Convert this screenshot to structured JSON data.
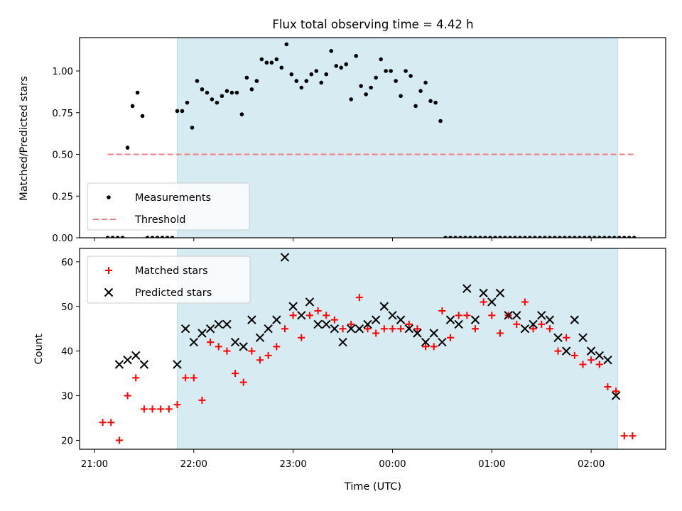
{
  "chart_data": [
    {
      "type": "scatter",
      "title": "Flux total observing time = 4.42 h",
      "ylabel": "Matched/Predicted stars",
      "xlim": [
        "20:51",
        "02:45"
      ],
      "ylim": [
        0,
        1.2
      ],
      "y_ticks": [
        0.0,
        0.25,
        0.5,
        0.75,
        1.0
      ],
      "y_tick_labels": [
        "0.00",
        "0.25",
        "0.50",
        "0.75",
        "1.00"
      ],
      "observing_window": [
        "21:50",
        "02:16"
      ],
      "legend": {
        "placement": "lower-left",
        "entries": [
          "Measurements",
          "Threshold"
        ]
      },
      "threshold": {
        "name": "Threshold",
        "y": 0.5,
        "x_range": [
          "21:08",
          "02:26"
        ],
        "color": "#f08080"
      },
      "series": [
        {
          "name": "Measurements",
          "marker": "dot",
          "color": "#000000",
          "x": [
            "21:08",
            "21:11",
            "21:14",
            "21:17",
            "21:20",
            "21:23",
            "21:26",
            "21:29",
            "21:32",
            "21:35",
            "21:38",
            "21:41",
            "21:44",
            "21:47",
            "21:50",
            "21:53",
            "21:56",
            "21:59",
            "22:02",
            "22:05",
            "22:08",
            "22:11",
            "22:14",
            "22:17",
            "22:20",
            "22:23",
            "22:26",
            "22:29",
            "22:32",
            "22:35",
            "22:38",
            "22:41",
            "22:44",
            "22:47",
            "22:50",
            "22:53",
            "22:56",
            "22:59",
            "23:02",
            "23:05",
            "23:08",
            "23:11",
            "23:14",
            "23:17",
            "23:20",
            "23:23",
            "23:26",
            "23:29",
            "23:32",
            "23:35",
            "23:38",
            "23:41",
            "23:44",
            "23:47",
            "23:50",
            "23:53",
            "23:56",
            "23:59",
            "00:02",
            "00:05",
            "00:08",
            "00:11",
            "00:14",
            "00:17",
            "00:20",
            "00:23",
            "00:26",
            "00:29",
            "00:32",
            "00:35",
            "00:38",
            "00:41",
            "00:44",
            "00:47",
            "00:50",
            "00:53",
            "00:56",
            "00:59",
            "01:02",
            "01:05",
            "01:08",
            "01:11",
            "01:14",
            "01:17",
            "01:20",
            "01:23",
            "01:26",
            "01:29",
            "01:32",
            "01:35",
            "01:38",
            "01:41",
            "01:44",
            "01:47",
            "01:50",
            "01:53",
            "01:56",
            "01:59",
            "02:02",
            "02:05",
            "02:08",
            "02:11",
            "02:14",
            "02:17",
            "02:20",
            "02:23",
            "02:26"
          ],
          "y": [
            0,
            0,
            0,
            0,
            0.54,
            0.79,
            0.87,
            0.73,
            0,
            0,
            0,
            0,
            0,
            0,
            0.76,
            0.76,
            0.81,
            0.66,
            0.94,
            0.89,
            0.87,
            0.83,
            0.81,
            0.85,
            0.88,
            0.87,
            0.87,
            0.74,
            0.96,
            0.89,
            0.94,
            1.07,
            1.05,
            1.05,
            1.07,
            1.02,
            1.16,
            0.98,
            0.94,
            0.9,
            0.94,
            0.98,
            1.0,
            0.93,
            0.98,
            1.12,
            1.03,
            1.02,
            1.04,
            0.83,
            1.09,
            0.91,
            0.86,
            0.9,
            0.96,
            1.07,
            1.0,
            1.0,
            0.94,
            0.85,
            1.0,
            0.97,
            0.79,
            0.88,
            0.93,
            0.82,
            0.81,
            0.7,
            0,
            0,
            0,
            0,
            0,
            0,
            0,
            0,
            0,
            0,
            0,
            0,
            0,
            0,
            0,
            0,
            0,
            0,
            0,
            0,
            0,
            0,
            0,
            0,
            0,
            0,
            0,
            0,
            0,
            0,
            0,
            0,
            0,
            0,
            0,
            0,
            0,
            0,
            0
          ]
        }
      ]
    },
    {
      "type": "scatter",
      "xlabel": "Time (UTC)",
      "ylabel": "Count",
      "xlim": [
        "20:51",
        "02:45"
      ],
      "ylim": [
        18,
        63
      ],
      "x_ticks": [
        "21:00",
        "22:00",
        "23:00",
        "00:00",
        "01:00",
        "02:00"
      ],
      "y_ticks": [
        20,
        30,
        40,
        50,
        60
      ],
      "y_tick_labels": [
        "20",
        "30",
        "40",
        "50",
        "60"
      ],
      "observing_window": [
        "21:50",
        "02:16"
      ],
      "legend": {
        "placement": "upper-left",
        "entries": [
          "Matched stars",
          "Predicted stars"
        ]
      },
      "series": [
        {
          "name": "Matched stars",
          "marker": "plus",
          "color": "#ff0000",
          "x": [
            "21:05",
            "21:10",
            "21:15",
            "21:20",
            "21:25",
            "21:30",
            "21:35",
            "21:40",
            "21:45",
            "21:50",
            "21:55",
            "22:00",
            "22:05",
            "22:10",
            "22:15",
            "22:20",
            "22:25",
            "22:30",
            "22:35",
            "22:40",
            "22:45",
            "22:50",
            "22:55",
            "23:00",
            "23:05",
            "23:10",
            "23:15",
            "23:20",
            "23:25",
            "23:30",
            "23:35",
            "23:40",
            "23:45",
            "23:50",
            "23:55",
            "00:00",
            "00:05",
            "00:10",
            "00:15",
            "00:20",
            "00:25",
            "00:30",
            "00:35",
            "00:40",
            "00:45",
            "00:50",
            "00:55",
            "01:00",
            "01:05",
            "01:10",
            "01:15",
            "01:20",
            "01:25",
            "01:30",
            "01:35",
            "01:40",
            "01:45",
            "01:50",
            "01:55",
            "02:00",
            "02:05",
            "02:10",
            "02:15",
            "02:20",
            "02:25"
          ],
          "y": [
            24,
            24,
            20,
            30,
            34,
            27,
            27,
            27,
            27,
            28,
            34,
            34,
            29,
            42,
            41,
            40,
            35,
            33,
            40,
            38,
            39,
            41,
            45,
            48,
            43,
            48,
            49,
            48,
            47,
            45,
            46,
            52,
            45,
            44,
            45,
            45,
            45,
            46,
            45,
            41,
            41,
            49,
            43,
            48,
            48,
            45,
            51,
            48,
            44,
            48,
            46,
            51,
            45,
            46,
            45,
            40,
            43,
            39,
            37,
            38,
            37,
            32,
            31,
            21,
            21
          ]
        },
        {
          "name": "Predicted stars",
          "marker": "x",
          "color": "#000000",
          "x": [
            "21:15",
            "21:20",
            "21:25",
            "21:30",
            "21:50",
            "21:55",
            "22:00",
            "22:05",
            "22:10",
            "22:15",
            "22:20",
            "22:25",
            "22:30",
            "22:35",
            "22:40",
            "22:45",
            "22:50",
            "22:55",
            "23:00",
            "23:05",
            "23:10",
            "23:15",
            "23:20",
            "23:25",
            "23:30",
            "23:35",
            "23:40",
            "23:45",
            "23:50",
            "23:55",
            "00:00",
            "00:05",
            "00:10",
            "00:15",
            "00:20",
            "00:25",
            "00:30",
            "00:35",
            "00:40",
            "00:45",
            "00:50",
            "00:55",
            "01:00",
            "01:05",
            "01:10",
            "01:15",
            "01:20",
            "01:25",
            "01:30",
            "01:35",
            "01:40",
            "01:45",
            "01:50",
            "01:55",
            "02:00",
            "02:05",
            "02:10",
            "02:15"
          ],
          "y": [
            37,
            38,
            39,
            37,
            37,
            45,
            42,
            44,
            45,
            46,
            46,
            42,
            41,
            47,
            43,
            45,
            47,
            61,
            50,
            48,
            51,
            46,
            46,
            45,
            42,
            45,
            45,
            46,
            47,
            50,
            48,
            47,
            45,
            44,
            42,
            44,
            42,
            47,
            46,
            54,
            47,
            53,
            51,
            53,
            48,
            48,
            45,
            46,
            48,
            47,
            43,
            40,
            47,
            43,
            40,
            39,
            38,
            30
          ]
        }
      ]
    }
  ]
}
